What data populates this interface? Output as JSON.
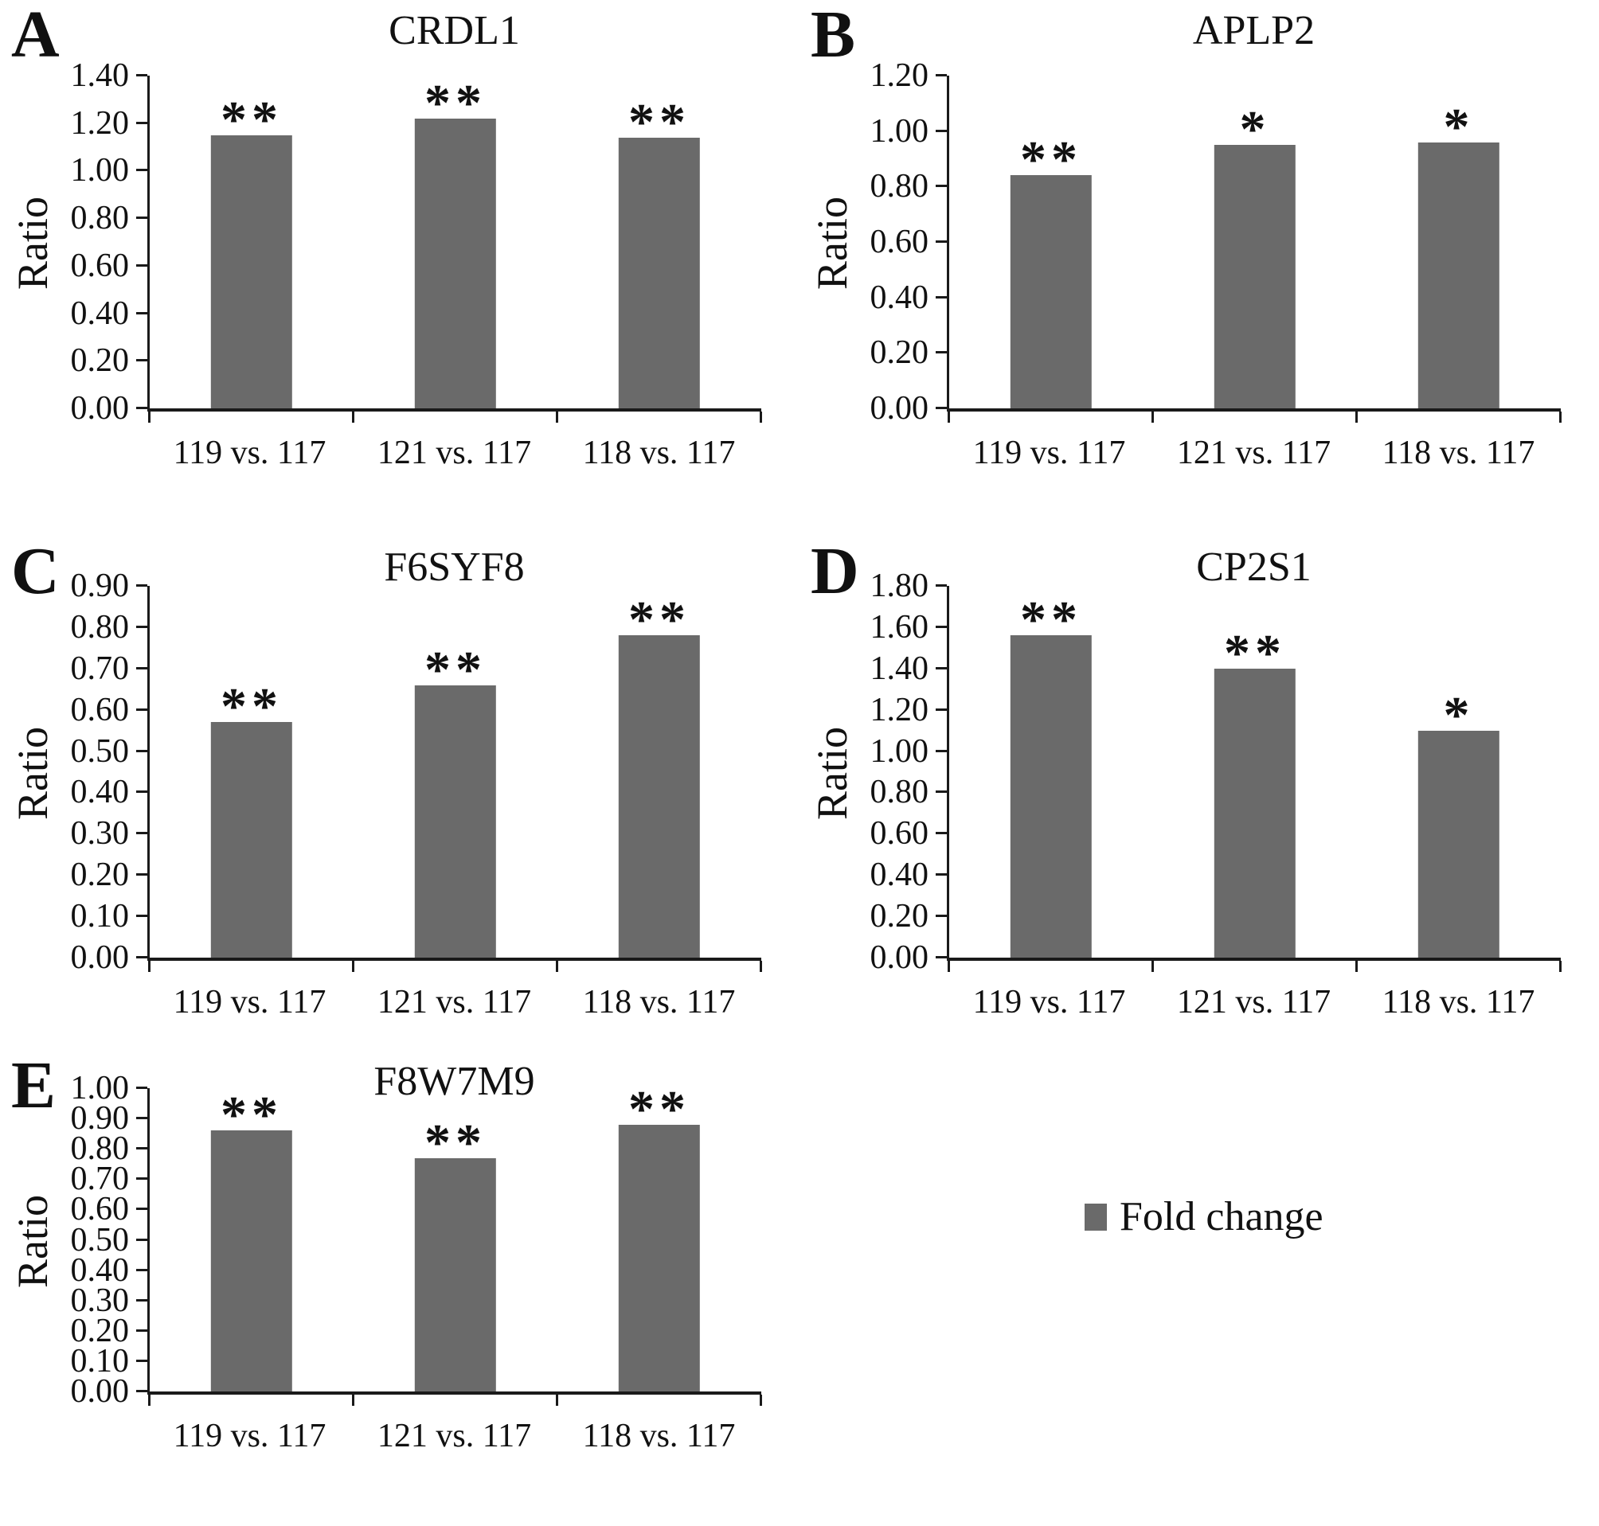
{
  "figure": {
    "bar_color": "#6a6a6a",
    "axis_color": "#1a1a1a",
    "legend": {
      "label": "Fold change",
      "swatch_color": "#6a6a6a",
      "position": "bottom-right cell of figure"
    },
    "categories": [
      "119 vs. 117",
      "121 vs. 117",
      "118 vs. 117"
    ],
    "ylabel": "Ratio"
  },
  "chart_data": [
    {
      "type": "bar",
      "panel": "A",
      "title": "CRDL1",
      "ylabel": "Ratio",
      "categories": [
        "119 vs. 117",
        "121 vs. 117",
        "118 vs. 117"
      ],
      "values": [
        1.15,
        1.22,
        1.14
      ],
      "significance": [
        "**",
        "**",
        "**"
      ],
      "ylim": [
        0,
        1.4
      ],
      "ytick_step": 0.2,
      "grid": false
    },
    {
      "type": "bar",
      "panel": "B",
      "title": "APLP2",
      "ylabel": "Ratio",
      "categories": [
        "119 vs. 117",
        "121 vs. 117",
        "118 vs. 117"
      ],
      "values": [
        0.84,
        0.95,
        0.96
      ],
      "significance": [
        "**",
        "*",
        "*"
      ],
      "ylim": [
        0,
        1.2
      ],
      "ytick_step": 0.2,
      "grid": false
    },
    {
      "type": "bar",
      "panel": "C",
      "title": "F6SYF8",
      "ylabel": "Ratio",
      "categories": [
        "119 vs. 117",
        "121 vs. 117",
        "118 vs. 117"
      ],
      "values": [
        0.57,
        0.66,
        0.78
      ],
      "significance": [
        "**",
        "**",
        "**"
      ],
      "ylim": [
        0,
        0.9
      ],
      "ytick_step": 0.1,
      "grid": false
    },
    {
      "type": "bar",
      "panel": "D",
      "title": "CP2S1",
      "ylabel": "Ratio",
      "categories": [
        "119 vs. 117",
        "121 vs. 117",
        "118 vs. 117"
      ],
      "values": [
        1.56,
        1.4,
        1.1
      ],
      "significance": [
        "**",
        "**",
        "*"
      ],
      "ylim": [
        0,
        1.8
      ],
      "ytick_step": 0.2,
      "grid": false
    },
    {
      "type": "bar",
      "panel": "E",
      "title": "F8W7M9",
      "ylabel": "Ratio",
      "categories": [
        "119 vs. 117",
        "121 vs. 117",
        "118 vs. 117"
      ],
      "values": [
        0.86,
        0.77,
        0.88
      ],
      "significance": [
        "**",
        "**",
        "**"
      ],
      "ylim": [
        0,
        1.0
      ],
      "ytick_step": 0.1,
      "grid": false
    }
  ]
}
